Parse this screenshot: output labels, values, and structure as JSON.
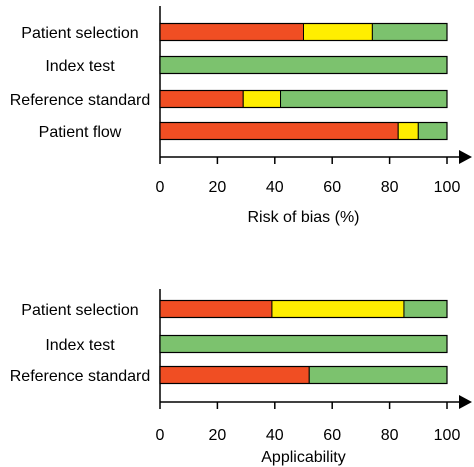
{
  "chart_data": [
    {
      "type": "bar",
      "stacked": true,
      "orientation": "horizontal",
      "categories": [
        "Patient selection",
        "Index test",
        "Reference standard",
        "Patient flow"
      ],
      "series": [
        {
          "color": "#f04e23",
          "values": [
            50,
            0,
            29,
            83
          ]
        },
        {
          "color": "#ffee00",
          "values": [
            24,
            0,
            13,
            7
          ]
        },
        {
          "color": "#7cc26e",
          "values": [
            26,
            100,
            58,
            10
          ]
        }
      ],
      "xlabel": "Risk of bias (%)",
      "xlim": [
        0,
        100
      ],
      "xticks": [
        "0",
        "20",
        "40",
        "60",
        "80",
        "100"
      ],
      "grid": false
    },
    {
      "type": "bar",
      "stacked": true,
      "orientation": "horizontal",
      "categories": [
        "Patient selection",
        "Index test",
        "Reference standard"
      ],
      "series": [
        {
          "color": "#f04e23",
          "values": [
            39,
            0,
            52
          ]
        },
        {
          "color": "#ffee00",
          "values": [
            46,
            0,
            0
          ]
        },
        {
          "color": "#7cc26e",
          "values": [
            15,
            100,
            48
          ]
        }
      ],
      "xlabel": "Applicability",
      "xlim": [
        0,
        100
      ],
      "xticks": [
        "0",
        "20",
        "40",
        "60",
        "80",
        "100"
      ],
      "grid": false
    }
  ]
}
